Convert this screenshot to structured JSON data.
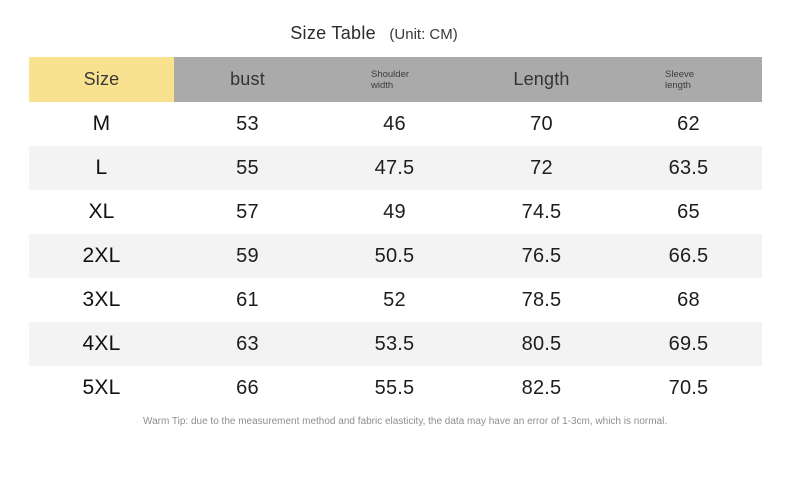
{
  "chart_data": {
    "type": "table",
    "title": "Size Table",
    "unit_label": "(Unit: CM)",
    "columns": [
      "Size",
      "bust",
      "Shoulder width",
      "Length",
      "Sleeve length"
    ],
    "rows": [
      [
        "M",
        "53",
        "46",
        "70",
        "62"
      ],
      [
        "L",
        "55",
        "47.5",
        "72",
        "63.5"
      ],
      [
        "XL",
        "57",
        "49",
        "74.5",
        "65"
      ],
      [
        "2XL",
        "59",
        "50.5",
        "76.5",
        "66.5"
      ],
      [
        "3XL",
        "61",
        "52",
        "78.5",
        "68"
      ],
      [
        "4XL",
        "63",
        "53.5",
        "80.5",
        "69.5"
      ],
      [
        "5XL",
        "66",
        "55.5",
        "82.5",
        "70.5"
      ]
    ],
    "footnote": "Warm Tip: due to the measurement method and fabric elasticity, the data may have an error of 1-3cm, which is normal.",
    "layout_hints": {
      "striped_rows": "even rows shaded",
      "header_style": "gray band with yellow Size cell"
    }
  },
  "colors": {
    "size_header_bg": "#F8E18F",
    "header_bg": "#AAAAAA",
    "stripe_bg": "#F3F3F4",
    "value_text": "#1D1D1D",
    "footnote_text": "#8E8E8E"
  }
}
